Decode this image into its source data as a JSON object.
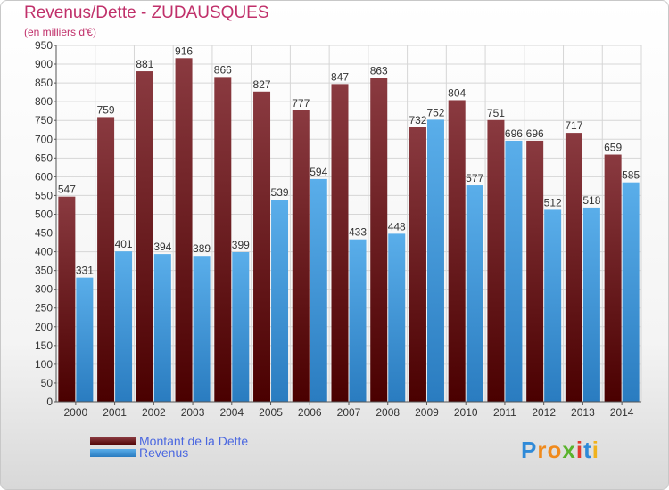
{
  "title": "Revenus/Dette - ZUDAUSQUES",
  "subtitle": "(en milliers d'€)",
  "brand": {
    "letters": [
      "P",
      "r",
      "o",
      "x",
      "i",
      "t",
      "i"
    ],
    "colors": [
      "#2f8ad8",
      "#f08a1c",
      "#f08a1c",
      "#5ab32c",
      "#e33b2f",
      "#2f8ad8",
      "#f0b21c"
    ]
  },
  "colors": {
    "dette_top": "#8a3a40",
    "dette_bottom": "#4a0000",
    "revenus_top": "#5aaeea",
    "revenus_bottom": "#2a7cc0",
    "grid": "#d6d6d6",
    "axis": "#555555",
    "label": "#333333"
  },
  "legend": {
    "items": [
      {
        "label": "Montant de la Dette"
      },
      {
        "label": "Revenus"
      }
    ]
  },
  "chart_data": {
    "type": "bar",
    "categories": [
      "2000",
      "2001",
      "2002",
      "2003",
      "2004",
      "2005",
      "2006",
      "2007",
      "2008",
      "2009",
      "2010",
      "2011",
      "2012",
      "2013",
      "2014"
    ],
    "series": [
      {
        "name": "Montant de la Dette",
        "values": [
          547,
          759,
          881,
          916,
          866,
          827,
          777,
          847,
          863,
          732,
          804,
          751,
          696,
          717,
          659
        ]
      },
      {
        "name": "Revenus",
        "values": [
          331,
          401,
          394,
          389,
          399,
          539,
          594,
          433,
          448,
          752,
          577,
          696,
          512,
          518,
          585
        ]
      }
    ],
    "yticks": [
      "0",
      "50",
      "100",
      "150",
      "200",
      "250",
      "300",
      "350",
      "400",
      "450",
      "500",
      "550",
      "600",
      "650",
      "700",
      "750",
      "800",
      "850",
      "900",
      "950"
    ],
    "ylim": [
      0,
      950
    ],
    "grid": true,
    "legend_position": "bottom-left"
  }
}
